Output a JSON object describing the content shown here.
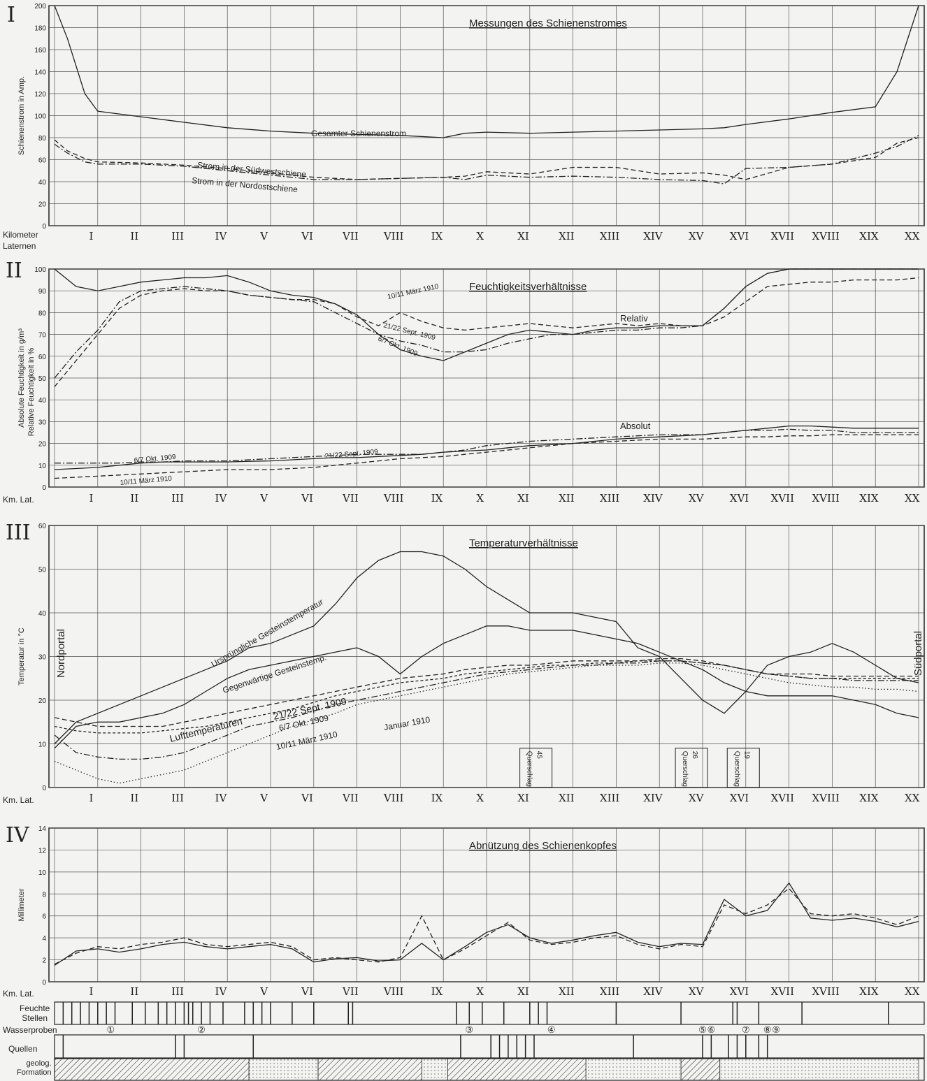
{
  "colors": {
    "ink": "#222222",
    "paper": "#f3f3f1",
    "grid": "#555555"
  },
  "x_axis": {
    "kilometer_label": "Kilometer",
    "laternen_label": "Laternen",
    "short_label": "Km. Lat.",
    "ticks": [
      "I",
      "II",
      "III",
      "IV",
      "V",
      "VI",
      "VII",
      "VIII",
      "IX",
      "X",
      "XI",
      "XII",
      "XIII",
      "XIV",
      "XV",
      "XVI",
      "XVII",
      "XVIII",
      "XIX",
      "XX"
    ]
  },
  "panels": {
    "p1": {
      "numeral": "I"
    },
    "p2": {
      "numeral": "II"
    },
    "p3": {
      "numeral": "III"
    },
    "p4": {
      "numeral": "IV"
    }
  },
  "strips": {
    "feuchte_label": "Feuchte\nStellen",
    "wasser_label": "Wasserproben",
    "quellen_label": "Quellen",
    "geolog_label": "geolog.\nFormation"
  },
  "chart_data": [
    {
      "type": "line",
      "title": "Messungen des Schienenstromes",
      "ylabel": "Schienenstrom in Amp.",
      "ylim": [
        0,
        200
      ],
      "yticks": [
        0,
        20,
        40,
        60,
        80,
        100,
        120,
        140,
        160,
        180,
        200
      ],
      "x": [
        0,
        0.3,
        0.7,
        1,
        2,
        3,
        4,
        5,
        6,
        7,
        8,
        9,
        9.5,
        10,
        11,
        12,
        13,
        14,
        15,
        15.5,
        16,
        17,
        18,
        19,
        19.5,
        20
      ],
      "series": [
        {
          "name": "Gesamter Schienenstrom",
          "style": "solid",
          "values": [
            200,
            170,
            120,
            104,
            99,
            94,
            89,
            86,
            84,
            83,
            82,
            80,
            84,
            85,
            84,
            85,
            86,
            87,
            88,
            89,
            92,
            97,
            103,
            108,
            140,
            200
          ]
        },
        {
          "name": "Strom in der Südwestschiene",
          "style": "dashed",
          "values": [
            78,
            68,
            61,
            58,
            57,
            55,
            52,
            48,
            44,
            42,
            43,
            44,
            45,
            49,
            47,
            53,
            53,
            47,
            48,
            46,
            42,
            53,
            56,
            62,
            75,
            80
          ]
        },
        {
          "name": "Strom in der Nordostschiene",
          "style": "dashdot",
          "values": [
            74,
            66,
            58,
            56,
            56,
            54,
            50,
            46,
            42,
            42,
            43,
            44,
            42,
            46,
            44,
            45,
            44,
            42,
            41,
            38,
            52,
            53,
            56,
            66,
            72,
            82
          ]
        }
      ],
      "annotations": [
        "Gesamter Schienenstrom",
        "Strom in der Südwestschiene",
        "Strom in der Nordostschiene"
      ]
    },
    {
      "type": "line",
      "title": "Feuchtigkeitsverhältnisse",
      "ylabel": "Absolute Feuchtigkeit in g/m³",
      "ylabel2": "Relative Feuchtigkeit in %",
      "ylim": [
        0,
        100
      ],
      "yticks": [
        0,
        10,
        20,
        30,
        40,
        50,
        60,
        70,
        80,
        90,
        100
      ],
      "yticks_abs": [
        0,
        5,
        10,
        15,
        20,
        25
      ],
      "x": [
        0,
        0.5,
        1,
        1.5,
        2,
        2.5,
        3,
        3.5,
        4,
        4.5,
        5,
        5.5,
        6,
        6.5,
        7,
        7.5,
        8,
        8.5,
        9,
        9.5,
        10,
        10.5,
        11,
        11.5,
        12,
        12.5,
        13,
        13.5,
        14,
        14.5,
        15,
        15.5,
        16,
        16.5,
        17,
        17.5,
        18,
        18.5,
        19,
        19.5,
        20
      ],
      "series": [
        {
          "name": "6/7 Okt. 1909",
          "style": "solid",
          "group": "Relativ",
          "values": [
            100,
            92,
            90,
            92,
            94,
            95,
            96,
            96,
            97,
            94,
            90,
            88,
            87,
            84,
            79,
            70,
            63,
            60,
            58,
            62,
            66,
            70,
            72,
            71,
            70,
            72,
            73,
            73,
            74,
            74,
            74,
            82,
            92,
            98,
            100,
            100,
            100,
            100,
            100,
            100,
            100
          ]
        },
        {
          "name": "21/22 Sept. 1909",
          "style": "dashdot",
          "group": "Relativ",
          "values": [
            50,
            62,
            72,
            85,
            90,
            91,
            92,
            91,
            90,
            88,
            87,
            86,
            85,
            80,
            75,
            70,
            67,
            65,
            62,
            62,
            63,
            66,
            68,
            70,
            70,
            71,
            72,
            72,
            73,
            73,
            74,
            82,
            92,
            98,
            100,
            100,
            100,
            100,
            100,
            100,
            100
          ]
        },
        {
          "name": "10/11 März 1910",
          "style": "dashed",
          "group": "Relativ",
          "values": [
            46,
            58,
            70,
            82,
            88,
            90,
            91,
            90,
            90,
            88,
            87,
            86,
            86,
            84,
            78,
            74,
            80,
            76,
            73,
            72,
            73,
            74,
            75,
            74,
            73,
            74,
            75,
            74,
            75,
            74,
            74,
            78,
            85,
            92,
            93,
            94,
            94,
            95,
            95,
            95,
            96
          ]
        },
        {
          "name": "6/7 Okt. 1909",
          "style": "solid",
          "group": "Absolut",
          "values": [
            8,
            8.5,
            9,
            10,
            11,
            11.5,
            11.5,
            11.5,
            11.5,
            11.8,
            12,
            12.5,
            13,
            13.5,
            13.5,
            14,
            14.5,
            15,
            16,
            16.5,
            17,
            18,
            19,
            19.5,
            20,
            21,
            22,
            22.5,
            23,
            23.5,
            24,
            25,
            26,
            27,
            28,
            28,
            27.5,
            27,
            27,
            27,
            27
          ]
        },
        {
          "name": "21/22 Sept. 1909",
          "style": "dashdot",
          "group": "Absolut",
          "values": [
            11,
            11,
            11,
            11,
            11.5,
            11.5,
            12,
            12,
            12,
            12.5,
            13,
            13.5,
            14,
            14.5,
            15,
            15,
            15,
            15,
            16,
            17,
            19,
            20,
            21,
            21.5,
            22,
            22.5,
            23,
            23.5,
            24,
            24,
            24,
            25,
            26,
            26,
            26.5,
            26,
            26,
            25,
            25,
            25,
            25
          ]
        },
        {
          "name": "10/11 März 1910",
          "style": "dashed",
          "group": "Absolut",
          "values": [
            4,
            4.5,
            5,
            5.5,
            6,
            6.5,
            7,
            7.5,
            8,
            8,
            8,
            8.5,
            9,
            10,
            11,
            12,
            13,
            13.5,
            14,
            15,
            16,
            17,
            18,
            19,
            20,
            20.5,
            21,
            21.5,
            22,
            22,
            22,
            22.5,
            23,
            23,
            23.5,
            23.5,
            24,
            24,
            24,
            24,
            24
          ]
        }
      ],
      "annotations": [
        "10/11 März 1910",
        "21/22 Sept. 1909",
        "6/7 Okt. 1909",
        "Relativ",
        "Absolut",
        "6/7 Okt. 1909",
        "21/22 Sept. 1909",
        "10/11 März 1910"
      ]
    },
    {
      "type": "line",
      "title": "Temperaturverhältnisse",
      "ylabel": "Temperatur in °C",
      "ylim": [
        0,
        60
      ],
      "yticks": [
        0,
        10,
        20,
        30,
        40,
        50,
        60
      ],
      "x": [
        0,
        0.5,
        1,
        1.5,
        2,
        2.5,
        3,
        3.5,
        4,
        4.5,
        5,
        5.5,
        6,
        6.5,
        7,
        7.5,
        8,
        8.5,
        9,
        9.5,
        10,
        10.5,
        11,
        11.5,
        12,
        12.5,
        13,
        13.5,
        14,
        14.5,
        15,
        15.5,
        16,
        16.5,
        17,
        17.5,
        18,
        18.5,
        19,
        19.5,
        20
      ],
      "series": [
        {
          "name": "Ursprüngliche Gesteinstemperatur",
          "style": "solid",
          "values": [
            10,
            15,
            17,
            19,
            21,
            23,
            25,
            27,
            29,
            32,
            33,
            35,
            37,
            42,
            48,
            52,
            54,
            54,
            53,
            50,
            46,
            43,
            40,
            40,
            40,
            39,
            38,
            32,
            30,
            25,
            20,
            17,
            22,
            28,
            30,
            31,
            33,
            31,
            28,
            25,
            24
          ]
        },
        {
          "name": "Gegenwärtige Gesteinstemp.",
          "style": "solid",
          "values": [
            9,
            14,
            15,
            15,
            16,
            17,
            19,
            22,
            25,
            27,
            28,
            29,
            30,
            31,
            32,
            30,
            26,
            30,
            33,
            35,
            37,
            37,
            36,
            36,
            36,
            35,
            34,
            33,
            31,
            29,
            27,
            24,
            22,
            21,
            21,
            21,
            21,
            20,
            19,
            17,
            16
          ]
        },
        {
          "name": "21/22 Sept. 1909",
          "style": "dashed",
          "values": [
            16,
            15,
            14,
            14,
            14,
            14,
            15,
            16,
            17,
            18,
            19,
            20,
            21,
            22,
            23,
            24,
            25,
            25.5,
            26,
            27,
            27.5,
            28,
            28,
            28.5,
            29,
            29,
            29,
            29,
            29.5,
            29.5,
            29,
            28,
            27,
            26,
            26,
            26,
            25.5,
            25.5,
            25.5,
            25.5,
            25.5
          ]
        },
        {
          "name": "6/7 Okt. 1909",
          "style": "dashdot",
          "values": [
            12,
            8,
            7,
            6.5,
            6.5,
            7,
            8,
            10,
            12,
            14,
            15,
            16,
            17.5,
            19,
            20,
            21,
            22,
            23,
            24,
            25,
            26,
            26.5,
            27,
            27.5,
            28,
            28,
            28.5,
            28.5,
            29,
            29,
            28.5,
            28,
            27,
            26,
            25.5,
            25,
            25,
            24.5,
            24.5,
            24.5,
            24.5
          ]
        },
        {
          "name": "Januar 1910",
          "style": "dotted",
          "values": [
            6,
            4,
            2,
            1,
            2,
            3,
            4,
            6,
            8,
            10,
            12,
            14,
            15.5,
            17,
            19,
            20,
            21,
            22,
            23,
            24,
            25,
            26,
            26.5,
            27,
            27.5,
            28,
            28,
            28,
            28.5,
            28.5,
            28,
            27,
            26,
            25,
            24,
            23.5,
            23,
            23,
            22.5,
            22.5,
            22
          ]
        },
        {
          "name": "10/11 März 1910",
          "style": "dashed2",
          "values": [
            14,
            13,
            12.5,
            12.5,
            12.5,
            13,
            13.5,
            14,
            15,
            16,
            17,
            18,
            19.5,
            21,
            22,
            23,
            24,
            24.5,
            25,
            26,
            26.5,
            27,
            27.5,
            28,
            28,
            28.5,
            28.5,
            29,
            29,
            29,
            28.5,
            28,
            27,
            26,
            25.5,
            25,
            25,
            25,
            25,
            25,
            25
          ]
        }
      ],
      "annotations": [
        "Ursprüngliche Gesteinstemperatur",
        "Gegenwärtige Gesteinstemp.",
        "Lufttemperaturen",
        "21/22 Sept. 1909",
        "6/7 Okt. 1909",
        "10/11 März 1910",
        "Januar 1910",
        "Nordportal",
        "Südportal"
      ],
      "querschlag": [
        {
          "label": "Querschlag",
          "num": "45",
          "x": 10.9,
          "top": 9
        },
        {
          "label": "Querschlag",
          "num": "26",
          "x": 14.5,
          "top": 9
        },
        {
          "label": "Querschlag",
          "num": "19",
          "x": 15.7,
          "top": 9
        }
      ]
    },
    {
      "type": "line",
      "title": "Abnützung des Schienenkopfes",
      "ylabel": "Millimeter",
      "ylim": [
        0,
        14
      ],
      "yticks": [
        0,
        2,
        4,
        6,
        8,
        10,
        12,
        14
      ],
      "x": [
        0,
        0.5,
        1,
        1.5,
        2,
        2.5,
        3,
        3.5,
        4,
        4.5,
        5,
        5.5,
        6,
        6.5,
        7,
        7.5,
        8,
        8.5,
        9,
        9.5,
        10,
        10.5,
        11,
        11.5,
        12,
        12.5,
        13,
        13.5,
        14,
        14.5,
        15,
        15.5,
        16,
        16.5,
        17,
        17.5,
        18,
        18.5,
        19,
        19.5,
        20
      ],
      "series": [
        {
          "name": "",
          "style": "solid",
          "values": [
            1.5,
            2.8,
            3.0,
            2.7,
            3.0,
            3.4,
            3.6,
            3.2,
            3.0,
            3.2,
            3.4,
            3.0,
            1.8,
            2.1,
            2.2,
            1.9,
            2.0,
            3.5,
            2.0,
            3.2,
            4.5,
            5.2,
            4.0,
            3.5,
            3.8,
            4.2,
            4.5,
            3.6,
            3.2,
            3.5,
            3.4,
            7.5,
            6.0,
            6.5,
            9.0,
            5.8,
            5.6,
            5.8,
            5.5,
            5.0,
            5.5
          ]
        },
        {
          "name": "",
          "style": "dashed",
          "values": [
            1.6,
            2.6,
            3.2,
            3.0,
            3.4,
            3.6,
            4.0,
            3.4,
            3.2,
            3.4,
            3.6,
            3.2,
            2.0,
            2.2,
            2.0,
            1.8,
            2.2,
            6.0,
            2.0,
            3.0,
            4.2,
            5.4,
            3.8,
            3.4,
            3.6,
            4.0,
            4.2,
            3.4,
            3.0,
            3.4,
            3.2,
            7.0,
            6.2,
            7.0,
            8.5,
            6.2,
            6.0,
            6.2,
            5.8,
            5.2,
            6.0
          ]
        }
      ],
      "annotations": [
        "①",
        "②",
        "③",
        "④",
        "⑤",
        "⑥",
        "⑦",
        "⑧",
        "⑨"
      ]
    }
  ],
  "wasserproben": [
    {
      "label": "①",
      "x": 1.3
    },
    {
      "label": "②",
      "x": 3.4
    },
    {
      "label": "③",
      "x": 9.6
    },
    {
      "label": "④",
      "x": 11.5
    },
    {
      "label": "⑤",
      "x": 15.0
    },
    {
      "label": "⑥",
      "x": 15.2
    },
    {
      "label": "⑦",
      "x": 16.0
    },
    {
      "label": "⑧",
      "x": 16.5
    },
    {
      "label": "⑨",
      "x": 16.7
    }
  ]
}
